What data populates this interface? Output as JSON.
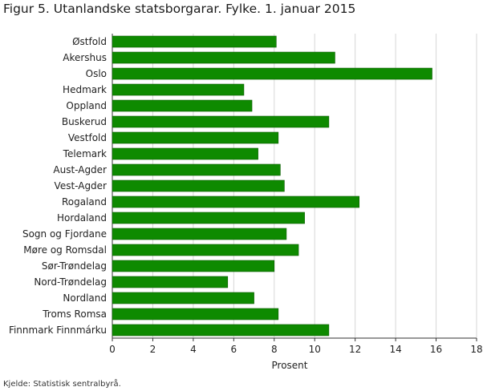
{
  "figure": {
    "title": "Figur 5. Utanlandske statsborgarar. Fylke. 1. januar 2015",
    "source": "Kjelde: Statistisk sentralbyrå."
  },
  "colors": {
    "bar": "#0e8a00",
    "bar_stroke": "#0a5a00",
    "grid": "#d6d6d6",
    "axis": "#333333"
  },
  "chart_data": {
    "type": "bar",
    "orientation": "horizontal",
    "title": "Figur 5. Utanlandske statsborgarar. Fylke. 1. januar 2015",
    "xlabel": "Prosent",
    "ylabel": "",
    "xlim": [
      0,
      18
    ],
    "xticks": [
      0,
      2,
      4,
      6,
      8,
      10,
      12,
      14,
      16,
      18
    ],
    "grid": true,
    "categories": [
      "Østfold",
      "Akershus",
      "Oslo",
      "Hedmark",
      "Oppland",
      "Buskerud",
      "Vestfold",
      "Telemark",
      "Aust-Agder",
      "Vest-Agder",
      "Rogaland",
      "Hordaland",
      "Sogn og Fjordane",
      "Møre og Romsdal",
      "Sør-Trøndelag",
      "Nord-Trøndelag",
      "Nordland",
      "Troms Romsa",
      "Finnmark Finnmárku"
    ],
    "values": [
      8.1,
      11.0,
      15.8,
      6.5,
      6.9,
      10.7,
      8.2,
      7.2,
      8.3,
      8.5,
      12.2,
      9.5,
      8.6,
      9.2,
      8.0,
      5.7,
      7.0,
      8.2,
      10.7
    ]
  }
}
